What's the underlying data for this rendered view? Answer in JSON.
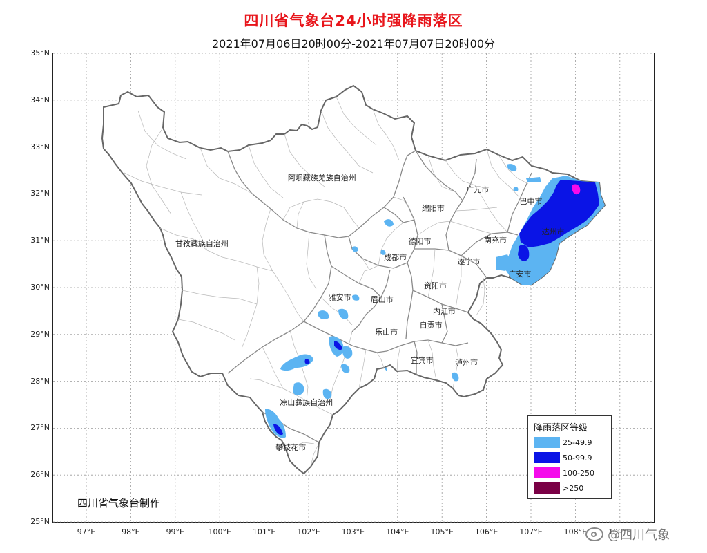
{
  "header": {
    "title": "四川省气象台24小时强降雨落区",
    "subtitle": "2021年07月06日20时00分-2021年07月07日20时00分"
  },
  "axes": {
    "lat_labels": [
      "35°N",
      "34°N",
      "33°N",
      "32°N",
      "31°N",
      "30°N",
      "29°N",
      "28°N",
      "27°N",
      "26°N",
      "25°N"
    ],
    "lon_labels": [
      "97°E",
      "98°E",
      "99°E",
      "100°E",
      "101°E",
      "102°E",
      "103°E",
      "104°E",
      "105°E",
      "106°E",
      "107°E",
      "108°E",
      "109°E"
    ]
  },
  "places": [
    {
      "name": "阿坝藏族羌族自治州",
      "lon": 102.3,
      "lat": 32.35
    },
    {
      "name": "甘孜藏族自治州",
      "lon": 99.6,
      "lat": 30.95
    },
    {
      "name": "广元市",
      "lon": 105.8,
      "lat": 32.1
    },
    {
      "name": "巴中市",
      "lon": 107.0,
      "lat": 31.85
    },
    {
      "name": "绵阳市",
      "lon": 104.8,
      "lat": 31.7
    },
    {
      "name": "达州市",
      "lon": 107.5,
      "lat": 31.2
    },
    {
      "name": "南充市",
      "lon": 106.2,
      "lat": 31.02
    },
    {
      "name": "德阳市",
      "lon": 104.5,
      "lat": 30.99
    },
    {
      "name": "成都市",
      "lon": 103.95,
      "lat": 30.65
    },
    {
      "name": "遂宁市",
      "lon": 105.6,
      "lat": 30.56
    },
    {
      "name": "广安市",
      "lon": 106.75,
      "lat": 30.3
    },
    {
      "name": "资阳市",
      "lon": 104.85,
      "lat": 30.05
    },
    {
      "name": "雅安市",
      "lon": 102.7,
      "lat": 29.8
    },
    {
      "name": "眉山市",
      "lon": 103.65,
      "lat": 29.75
    },
    {
      "name": "内江市",
      "lon": 105.05,
      "lat": 29.5
    },
    {
      "name": "自贡市",
      "lon": 104.75,
      "lat": 29.2
    },
    {
      "name": "乐山市",
      "lon": 103.75,
      "lat": 29.05
    },
    {
      "name": "宜宾市",
      "lon": 104.55,
      "lat": 28.45
    },
    {
      "name": "泸州市",
      "lon": 105.55,
      "lat": 28.4
    },
    {
      "name": "凉山彝族自治州",
      "lon": 101.95,
      "lat": 27.55
    },
    {
      "name": "攀枝花市",
      "lon": 101.6,
      "lat": 26.6
    }
  ],
  "legend": {
    "title": "降雨落区等级",
    "items": [
      {
        "label": "25-49.9",
        "color": "#5cb4f2"
      },
      {
        "label": "50-99.9",
        "color": "#0a14e6"
      },
      {
        "label": "100-250",
        "color": "#f50aeb"
      },
      {
        "label": ">250",
        "color": "#7a0045"
      }
    ]
  },
  "producer": "四川省气象台制作",
  "watermark": "@四川气象"
}
